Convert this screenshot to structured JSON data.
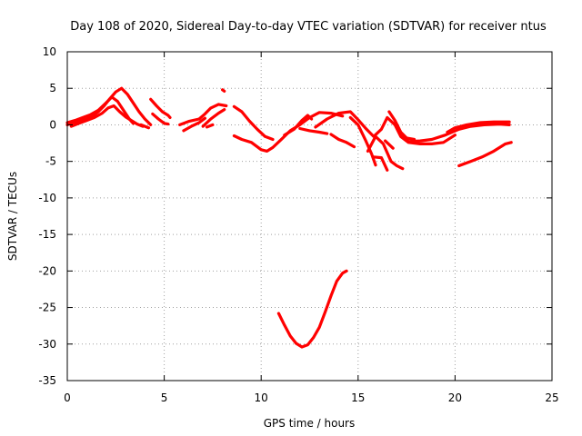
{
  "chart_data": {
    "type": "scatter",
    "title": "Day 108 of 2020, Sidereal Day-to-day VTEC variation (SDTVAR) for receiver ntus",
    "xlabel": "GPS time / hours",
    "ylabel": "SDTVAR / TECUs",
    "xlim": [
      0,
      25
    ],
    "ylim": [
      -35,
      10
    ],
    "xticks": [
      0,
      5,
      10,
      15,
      20,
      25
    ],
    "yticks": [
      10,
      5,
      0,
      -5,
      -10,
      -15,
      -20,
      -25,
      -30,
      -35
    ],
    "grid": true,
    "marker": "plus",
    "color": "#ff0000",
    "series": [
      {
        "name": "s01",
        "points": [
          [
            0,
            0
          ],
          [
            0.3,
            0.3
          ],
          [
            0.6,
            0.5
          ],
          [
            1,
            0.8
          ],
          [
            1.3,
            1.2
          ],
          [
            1.6,
            1.8
          ],
          [
            1.9,
            2.6
          ],
          [
            2.2,
            3.6
          ],
          [
            2.5,
            4.5
          ],
          [
            2.8,
            5
          ],
          [
            3.1,
            4.2
          ],
          [
            3.4,
            3
          ],
          [
            3.7,
            1.8
          ],
          [
            4,
            0.8
          ],
          [
            4.3,
            0
          ]
        ]
      },
      {
        "name": "s02",
        "points": [
          [
            0,
            0.3
          ],
          [
            0.4,
            0.6
          ],
          [
            0.8,
            1
          ],
          [
            1.2,
            1.4
          ],
          [
            1.6,
            2
          ],
          [
            2,
            3
          ],
          [
            2.3,
            3.8
          ],
          [
            2.6,
            3.2
          ],
          [
            2.9,
            2
          ],
          [
            3.2,
            0.8
          ],
          [
            3.4,
            0.2
          ]
        ]
      },
      {
        "name": "s03",
        "points": [
          [
            0.2,
            -0.2
          ],
          [
            0.6,
            0.2
          ],
          [
            1,
            0.6
          ],
          [
            1.4,
            1
          ],
          [
            1.8,
            1.6
          ],
          [
            2.1,
            2.3
          ],
          [
            2.4,
            2.6
          ],
          [
            2.7,
            1.8
          ],
          [
            3,
            1.1
          ],
          [
            3.3,
            0.6
          ],
          [
            3.6,
            0.1
          ],
          [
            3.9,
            -0.2
          ]
        ]
      },
      {
        "name": "s04",
        "points": [
          [
            3.8,
            0
          ],
          [
            4.2,
            -0.4
          ]
        ]
      },
      {
        "name": "s05",
        "points": [
          [
            4.3,
            3.5
          ],
          [
            4.6,
            2.6
          ],
          [
            4.9,
            1.8
          ],
          [
            5.2,
            1.3
          ],
          [
            5.3,
            1
          ]
        ]
      },
      {
        "name": "s06",
        "points": [
          [
            4.4,
            1.5
          ],
          [
            4.7,
            0.8
          ],
          [
            5,
            0.2
          ],
          [
            5.2,
            0.1
          ]
        ]
      },
      {
        "name": "s07",
        "points": [
          [
            5.8,
            0
          ],
          [
            6.3,
            0.5
          ],
          [
            6.8,
            0.8
          ],
          [
            7.1,
            1.5
          ],
          [
            7.4,
            2.3
          ],
          [
            7.8,
            2.8
          ],
          [
            8.2,
            2.6
          ]
        ]
      },
      {
        "name": "s08",
        "points": [
          [
            6,
            -0.8
          ],
          [
            6.4,
            -0.2
          ],
          [
            6.8,
            0.3
          ],
          [
            7.1,
            0.9
          ]
        ]
      },
      {
        "name": "s09",
        "points": [
          [
            7,
            -0.2
          ],
          [
            7.4,
            0.8
          ],
          [
            7.8,
            1.6
          ],
          [
            8.1,
            2.1
          ]
        ]
      },
      {
        "name": "s10",
        "points": [
          [
            7.5,
            0
          ],
          [
            7.2,
            -0.3
          ]
        ]
      },
      {
        "name": "s11",
        "points": [
          [
            8,
            4.8
          ],
          [
            8.1,
            4.6
          ]
        ]
      },
      {
        "name": "s12",
        "points": [
          [
            8.6,
            2.5
          ],
          [
            9,
            1.8
          ],
          [
            9.4,
            0.5
          ],
          [
            9.8,
            -0.6
          ],
          [
            10.2,
            -1.6
          ],
          [
            10.6,
            -2
          ]
        ]
      },
      {
        "name": "s13",
        "points": [
          [
            8.6,
            -1.5
          ],
          [
            9,
            -2
          ],
          [
            9.5,
            -2.4
          ],
          [
            10,
            -3.4
          ],
          [
            10.3,
            -3.6
          ],
          [
            10.6,
            -3.1
          ],
          [
            11,
            -2.1
          ],
          [
            11.5,
            -0.8
          ],
          [
            12,
            0
          ],
          [
            12.5,
            1
          ],
          [
            13,
            1.7
          ],
          [
            13.6,
            1.6
          ],
          [
            14.2,
            1.2
          ]
        ]
      },
      {
        "name": "s14",
        "points": [
          [
            11.2,
            -1.4
          ],
          [
            11.7,
            -0.6
          ],
          [
            12.1,
            0.6
          ],
          [
            12.4,
            1.3
          ],
          [
            12.6,
            0.8
          ]
        ]
      },
      {
        "name": "s15",
        "points": [
          [
            12,
            -0.5
          ],
          [
            12.5,
            -0.8
          ],
          [
            13,
            -1
          ],
          [
            13.4,
            -1.2
          ]
        ]
      },
      {
        "name": "s16",
        "points": [
          [
            12.8,
            -0.3
          ],
          [
            13.4,
            0.8
          ],
          [
            14,
            1.6
          ],
          [
            14.6,
            1.8
          ],
          [
            15,
            0.7
          ],
          [
            15.4,
            -0.5
          ],
          [
            15.8,
            -1.6
          ],
          [
            16.2,
            -0.6
          ],
          [
            16.5,
            1
          ],
          [
            16.9,
            0
          ],
          [
            17.2,
            -1.6
          ],
          [
            17.6,
            -2.4
          ],
          [
            18.2,
            -2.6
          ],
          [
            18.8,
            -2.6
          ],
          [
            19.4,
            -2.4
          ],
          [
            20,
            -1.4
          ]
        ]
      },
      {
        "name": "s17",
        "points": [
          [
            13.6,
            -1.3
          ],
          [
            14,
            -2
          ],
          [
            14.4,
            -2.4
          ],
          [
            14.8,
            -3
          ]
        ]
      },
      {
        "name": "s18",
        "points": [
          [
            14.6,
            1
          ],
          [
            15,
            0
          ],
          [
            15.4,
            -2.2
          ],
          [
            15.7,
            -4
          ],
          [
            15.9,
            -5.5
          ]
        ]
      },
      {
        "name": "s19",
        "points": [
          [
            15.5,
            -3.6
          ],
          [
            15.9,
            -1.6
          ],
          [
            16.3,
            -2.6
          ],
          [
            16.7,
            -5
          ],
          [
            17,
            -5.6
          ],
          [
            17.3,
            -6
          ]
        ]
      },
      {
        "name": "s20",
        "points": [
          [
            15.8,
            -4.4
          ],
          [
            16.2,
            -4.5
          ],
          [
            16.5,
            -6.2
          ]
        ]
      },
      {
        "name": "s21",
        "points": [
          [
            16.6,
            1.8
          ],
          [
            16.9,
            0.6
          ],
          [
            17.2,
            -1
          ],
          [
            17.5,
            -1.8
          ],
          [
            17.9,
            -2
          ]
        ]
      },
      {
        "name": "s22",
        "points": [
          [
            16.4,
            -2.2
          ],
          [
            16.8,
            -3.2
          ]
        ]
      },
      {
        "name": "s23",
        "points": [
          [
            17.3,
            -1.4
          ],
          [
            17.6,
            -2.3
          ],
          [
            18.2,
            -2.2
          ],
          [
            18.8,
            -2
          ],
          [
            19.5,
            -1.4
          ],
          [
            20.2,
            -0.6
          ],
          [
            20.8,
            -0.2
          ],
          [
            21.5,
            0
          ],
          [
            22.3,
            0.1
          ],
          [
            22.8,
            0
          ]
        ]
      },
      {
        "name": "s24",
        "points": [
          [
            19.6,
            -1
          ],
          [
            20,
            -0.4
          ],
          [
            20.6,
            0
          ],
          [
            21.3,
            0.3
          ],
          [
            22,
            0.4
          ],
          [
            22.8,
            0.4
          ]
        ]
      },
      {
        "name": "s25",
        "points": [
          [
            20.2,
            -5.6
          ],
          [
            20.8,
            -5
          ],
          [
            21.4,
            -4.4
          ],
          [
            22,
            -3.6
          ],
          [
            22.6,
            -2.6
          ],
          [
            22.9,
            -2.4
          ]
        ]
      },
      {
        "name": "s26",
        "points": [
          [
            10.9,
            -25.8
          ],
          [
            11.2,
            -27.4
          ],
          [
            11.5,
            -28.9
          ],
          [
            11.8,
            -29.9
          ],
          [
            12.1,
            -30.4
          ],
          [
            12.4,
            -30.1
          ],
          [
            12.7,
            -29.1
          ],
          [
            13,
            -27.7
          ],
          [
            13.3,
            -25.6
          ],
          [
            13.6,
            -23.4
          ],
          [
            13.9,
            -21.4
          ],
          [
            14.2,
            -20.3
          ],
          [
            14.4,
            -20
          ]
        ]
      }
    ]
  }
}
